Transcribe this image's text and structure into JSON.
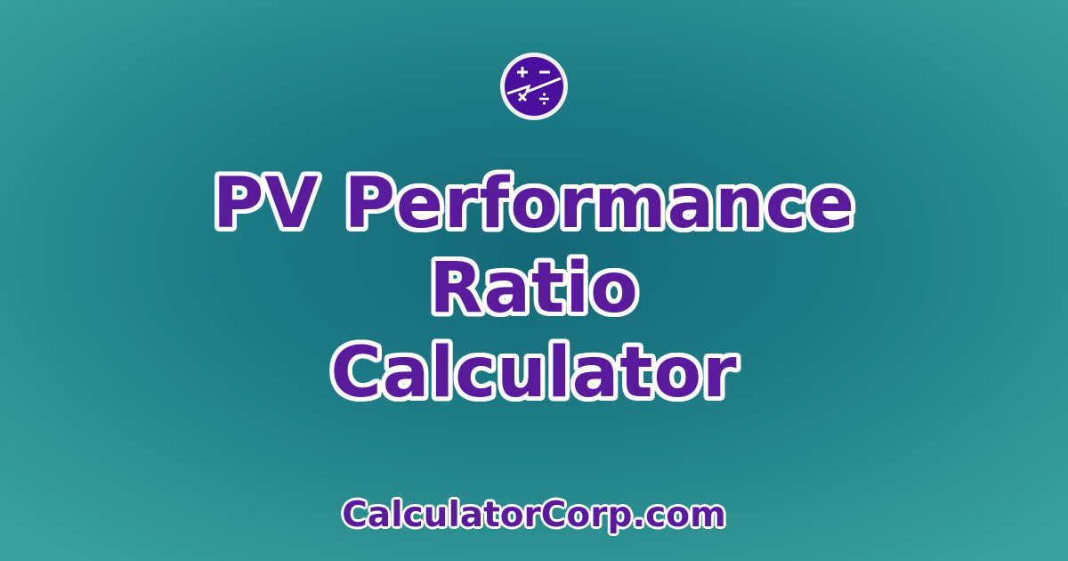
{
  "logo": {
    "icon": "calculator-operators-icon",
    "color": "#4b0f9e"
  },
  "title": {
    "lines": [
      "PV Performance",
      "Ratio",
      "Calculator"
    ],
    "color": "#5a1a9c"
  },
  "footer": {
    "site": "CalculatorCorp.com"
  }
}
